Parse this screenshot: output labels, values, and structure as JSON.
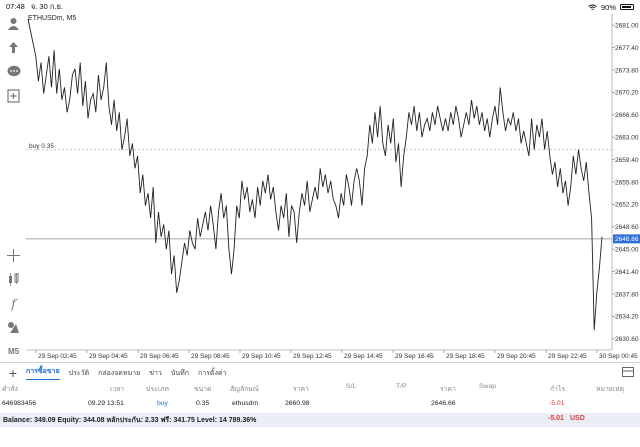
{
  "status_bar": {
    "time": "07:48",
    "date": "จ. 30 ก.ย.",
    "battery": "90%"
  },
  "symbol_label": "ETHUSDm, M5",
  "buy_label": "buy 0.35",
  "current_price": "2646.66",
  "price_ticks": [
    "2681.00",
    "2677.40",
    "2673.80",
    "2670.20",
    "2666.60",
    "2663.00",
    "2659.40",
    "2655.80",
    "2652.20",
    "2648.60",
    "2645.00",
    "2641.40",
    "2637.80",
    "2634.20",
    "2630.60"
  ],
  "time_ticks": [
    "29 Sep 02:45",
    "29 Sep 04:45",
    "29 Sep 06:45",
    "29 Sep 08:45",
    "29 Sep 10:45",
    "29 Sep 12:45",
    "29 Sep 14:45",
    "29 Sep 16:45",
    "29 Sep 18:45",
    "29 Sep 20:45",
    "29 Sep 22:45",
    "30 Sep 00:45"
  ],
  "toolbar_timeframe": "M5",
  "tabs": [
    "การซื้อขาย",
    "ประวัติ",
    "กล่องจดหมาย",
    "ข่าว",
    "บันทึก",
    "การตั้งค่า"
  ],
  "table": {
    "headers": [
      "คำสั่ง",
      "เวลา",
      "ประเภท",
      "ขนาด",
      "สัญลักษณ์",
      "ราคา",
      "S/L",
      "T/P",
      "ราคา",
      "Swap",
      "กำไร",
      "หมายเหตุ"
    ],
    "row": {
      "order": "646983456",
      "time": "09.29 13:51",
      "type": "buy",
      "size": "0.35",
      "symbol": "ethusdm",
      "open_price": "2660.98",
      "sl": "",
      "tp": "",
      "price": "2646.66",
      "swap": "",
      "profit": "-5.01",
      "comment": ""
    }
  },
  "balance": {
    "text": "Balance: 349.09 Equity: 344.08 หลักประกัน: 2.33 ฟรี: 341.75 Level: 14 789.36%",
    "profit": "-5.01",
    "currency": "USD"
  },
  "chart_data": {
    "type": "line",
    "ylim": [
      2628.8,
      2682.8
    ],
    "buy_price": 2660.98,
    "current": 2646.66,
    "values": [
      2682,
      2680,
      2678,
      2676,
      2672,
      2675,
      2670,
      2673,
      2676,
      2671,
      2677,
      2670,
      2674,
      2669,
      2671,
      2667,
      2669,
      2673,
      2674,
      2670,
      2675,
      2668,
      2672,
      2666,
      2669,
      2670,
      2667,
      2673,
      2669,
      2671,
      2675,
      2668,
      2665,
      2669,
      2664,
      2667,
      2661,
      2663,
      2666,
      2660,
      2662,
      2658,
      2660,
      2654,
      2657,
      2652,
      2654,
      2650,
      2655,
      2646,
      2651,
      2647,
      2649,
      2645,
      2648,
      2641,
      2644,
      2638,
      2640,
      2643,
      2646,
      2644,
      2648,
      2646,
      2645,
      2650,
      2647,
      2649,
      2651,
      2648,
      2652,
      2649,
      2645,
      2651,
      2654,
      2650,
      2652,
      2645,
      2641,
      2645,
      2652,
      2650,
      2656,
      2653,
      2655,
      2651,
      2653,
      2650,
      2655,
      2652,
      2656,
      2654,
      2657,
      2653,
      2655,
      2651,
      2648,
      2652,
      2650,
      2654,
      2647,
      2652,
      2651,
      2646,
      2651,
      2654,
      2652,
      2656,
      2651,
      2653,
      2655,
      2653,
      2658,
      2655,
      2657,
      2654,
      2656,
      2653,
      2652,
      2650,
      2654,
      2652,
      2657,
      2655,
      2652,
      2656,
      2658,
      2656,
      2652,
      2658,
      2660,
      2665,
      2662,
      2667,
      2663,
      2668,
      2662,
      2660,
      2665,
      2662,
      2666,
      2659,
      2662,
      2655,
      2660,
      2663,
      2667,
      2665,
      2668,
      2664,
      2667,
      2663,
      2665,
      2666,
      2664,
      2667,
      2665,
      2668,
      2666,
      2664,
      2666,
      2664,
      2667,
      2665,
      2668,
      2666,
      2663,
      2665,
      2667,
      2665,
      2669,
      2666,
      2668,
      2665,
      2667,
      2664,
      2666,
      2663,
      2666,
      2668,
      2665,
      2671,
      2667,
      2664,
      2666,
      2665,
      2667,
      2664,
      2666,
      2662,
      2664,
      2662,
      2660,
      2666,
      2661,
      2665,
      2663,
      2666,
      2661,
      2664,
      2660,
      2657,
      2659,
      2655,
      2658,
      2654,
      2656,
      2652,
      2655,
      2660,
      2657,
      2661,
      2658,
      2656,
      2659,
      2654,
      2650,
      2632,
      2638,
      2642,
      2647
    ]
  }
}
